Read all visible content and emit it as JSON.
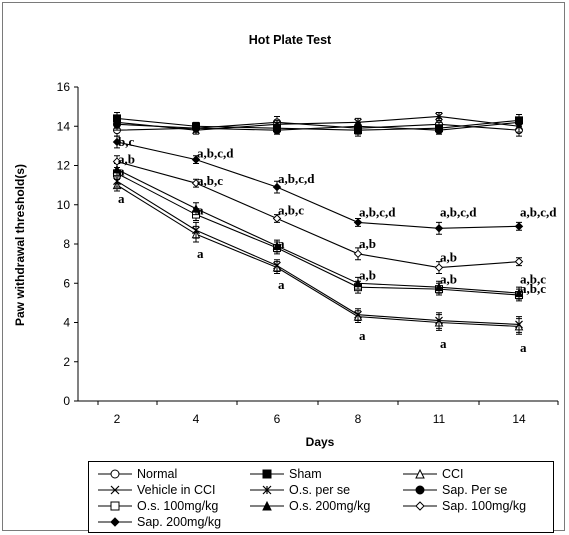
{
  "chart_data": {
    "type": "line",
    "title": "Hot Plate Test",
    "xlabel": "Days",
    "ylabel": "Paw withdrawal threshold(s)",
    "x": [
      2,
      4,
      6,
      8,
      11,
      14
    ],
    "x_tick_labels": [
      "2",
      "4",
      "6",
      "8",
      "11",
      "14"
    ],
    "ylim": [
      0,
      16
    ],
    "y_ticks": [
      0,
      2,
      4,
      6,
      8,
      10,
      12,
      14,
      16
    ],
    "grid": false,
    "legend_position": "bottom",
    "series": [
      {
        "name": "Normal",
        "marker": "circle-open",
        "values": [
          13.8,
          13.9,
          14.2,
          13.9,
          14.1,
          13.8
        ],
        "errors": [
          0.3,
          0.2,
          0.3,
          0.3,
          0.3,
          0.3
        ]
      },
      {
        "name": "Sham",
        "marker": "square-filled",
        "values": [
          14.4,
          14.0,
          13.9,
          13.8,
          13.9,
          14.3
        ],
        "errors": [
          0.3,
          0.2,
          0.3,
          0.3,
          0.3,
          0.3
        ]
      },
      {
        "name": "CCI",
        "marker": "triangle-open",
        "values": [
          11.0,
          8.5,
          6.8,
          4.3,
          4.0,
          3.8
        ],
        "errors": [
          0.3,
          0.4,
          0.3,
          0.3,
          0.4,
          0.4
        ]
      },
      {
        "name": "Vehicle in CCI",
        "marker": "x",
        "values": [
          11.2,
          8.7,
          6.9,
          4.4,
          4.1,
          3.9
        ],
        "errors": [
          0.3,
          0.4,
          0.3,
          0.3,
          0.4,
          0.4
        ]
      },
      {
        "name": "O.s. per se",
        "marker": "star",
        "values": [
          14.2,
          13.8,
          14.1,
          14.2,
          14.5,
          14.0
        ],
        "errors": [
          0.3,
          0.2,
          0.2,
          0.2,
          0.2,
          0.3
        ]
      },
      {
        "name": "Sap. Per se",
        "marker": "circle-filled",
        "values": [
          14.1,
          13.9,
          13.8,
          14.0,
          13.8,
          14.2
        ],
        "errors": [
          0.3,
          0.2,
          0.2,
          0.2,
          0.2,
          0.2
        ]
      },
      {
        "name": "O.s. 100mg/kg",
        "marker": "square-open",
        "values": [
          11.6,
          9.5,
          7.8,
          5.8,
          5.7,
          5.4
        ],
        "errors": [
          0.3,
          0.3,
          0.3,
          0.3,
          0.3,
          0.3
        ]
      },
      {
        "name": "O.s. 200mg/kg",
        "marker": "triangle-filled",
        "values": [
          11.8,
          9.8,
          7.9,
          6.0,
          5.8,
          5.5
        ],
        "errors": [
          0.3,
          0.3,
          0.3,
          0.3,
          0.3,
          0.3
        ]
      },
      {
        "name": "Sap. 100mg/kg",
        "marker": "diamond-open",
        "values": [
          12.2,
          11.1,
          9.3,
          7.5,
          6.8,
          7.1
        ],
        "errors": [
          0.3,
          0.2,
          0.2,
          0.3,
          0.3,
          0.2
        ]
      },
      {
        "name": "Sap. 200mg/kg",
        "marker": "diamond-filled",
        "values": [
          13.2,
          12.3,
          10.9,
          9.1,
          8.8,
          8.9
        ],
        "errors": [
          0.3,
          0.2,
          0.3,
          0.2,
          0.3,
          0.2
        ]
      }
    ],
    "annotations": [
      {
        "text": "b,c",
        "x": 2,
        "y": 13.2
      },
      {
        "text": "a,b",
        "x": 2,
        "y": 12.3
      },
      {
        "text": "a",
        "x": 2,
        "y": 11.7
      },
      {
        "text": "a",
        "x": 2,
        "y": 10.3
      },
      {
        "text": "a,b,c,d",
        "x": 4,
        "y": 12.6
      },
      {
        "text": "a,b,c",
        "x": 4,
        "y": 11.2
      },
      {
        "text": "a",
        "x": 4,
        "y": 9.7
      },
      {
        "text": "a",
        "x": 4,
        "y": 7.5
      },
      {
        "text": "a,b,c,d",
        "x": 6,
        "y": 11.3
      },
      {
        "text": "a,b,c",
        "x": 6,
        "y": 9.7
      },
      {
        "text": "a",
        "x": 6,
        "y": 8.0
      },
      {
        "text": "a",
        "x": 6,
        "y": 5.9
      },
      {
        "text": "a,b,c,d",
        "x": 8,
        "y": 9.6
      },
      {
        "text": "a,b",
        "x": 8,
        "y": 8.0
      },
      {
        "text": "a,b",
        "x": 8,
        "y": 6.4
      },
      {
        "text": "a",
        "x": 8,
        "y": 3.3
      },
      {
        "text": "a,b,c,d",
        "x": 11,
        "y": 9.6
      },
      {
        "text": "a,b",
        "x": 11,
        "y": 7.3
      },
      {
        "text": "a,b",
        "x": 11,
        "y": 6.2
      },
      {
        "text": "a",
        "x": 11,
        "y": 2.9
      },
      {
        "text": "a,b,c,d",
        "x": 14,
        "y": 9.6
      },
      {
        "text": "a,b,c",
        "x": 14,
        "y": 6.2
      },
      {
        "text": "a,b,c",
        "x": 14,
        "y": 5.7
      },
      {
        "text": "a",
        "x": 14,
        "y": 2.7
      }
    ]
  }
}
